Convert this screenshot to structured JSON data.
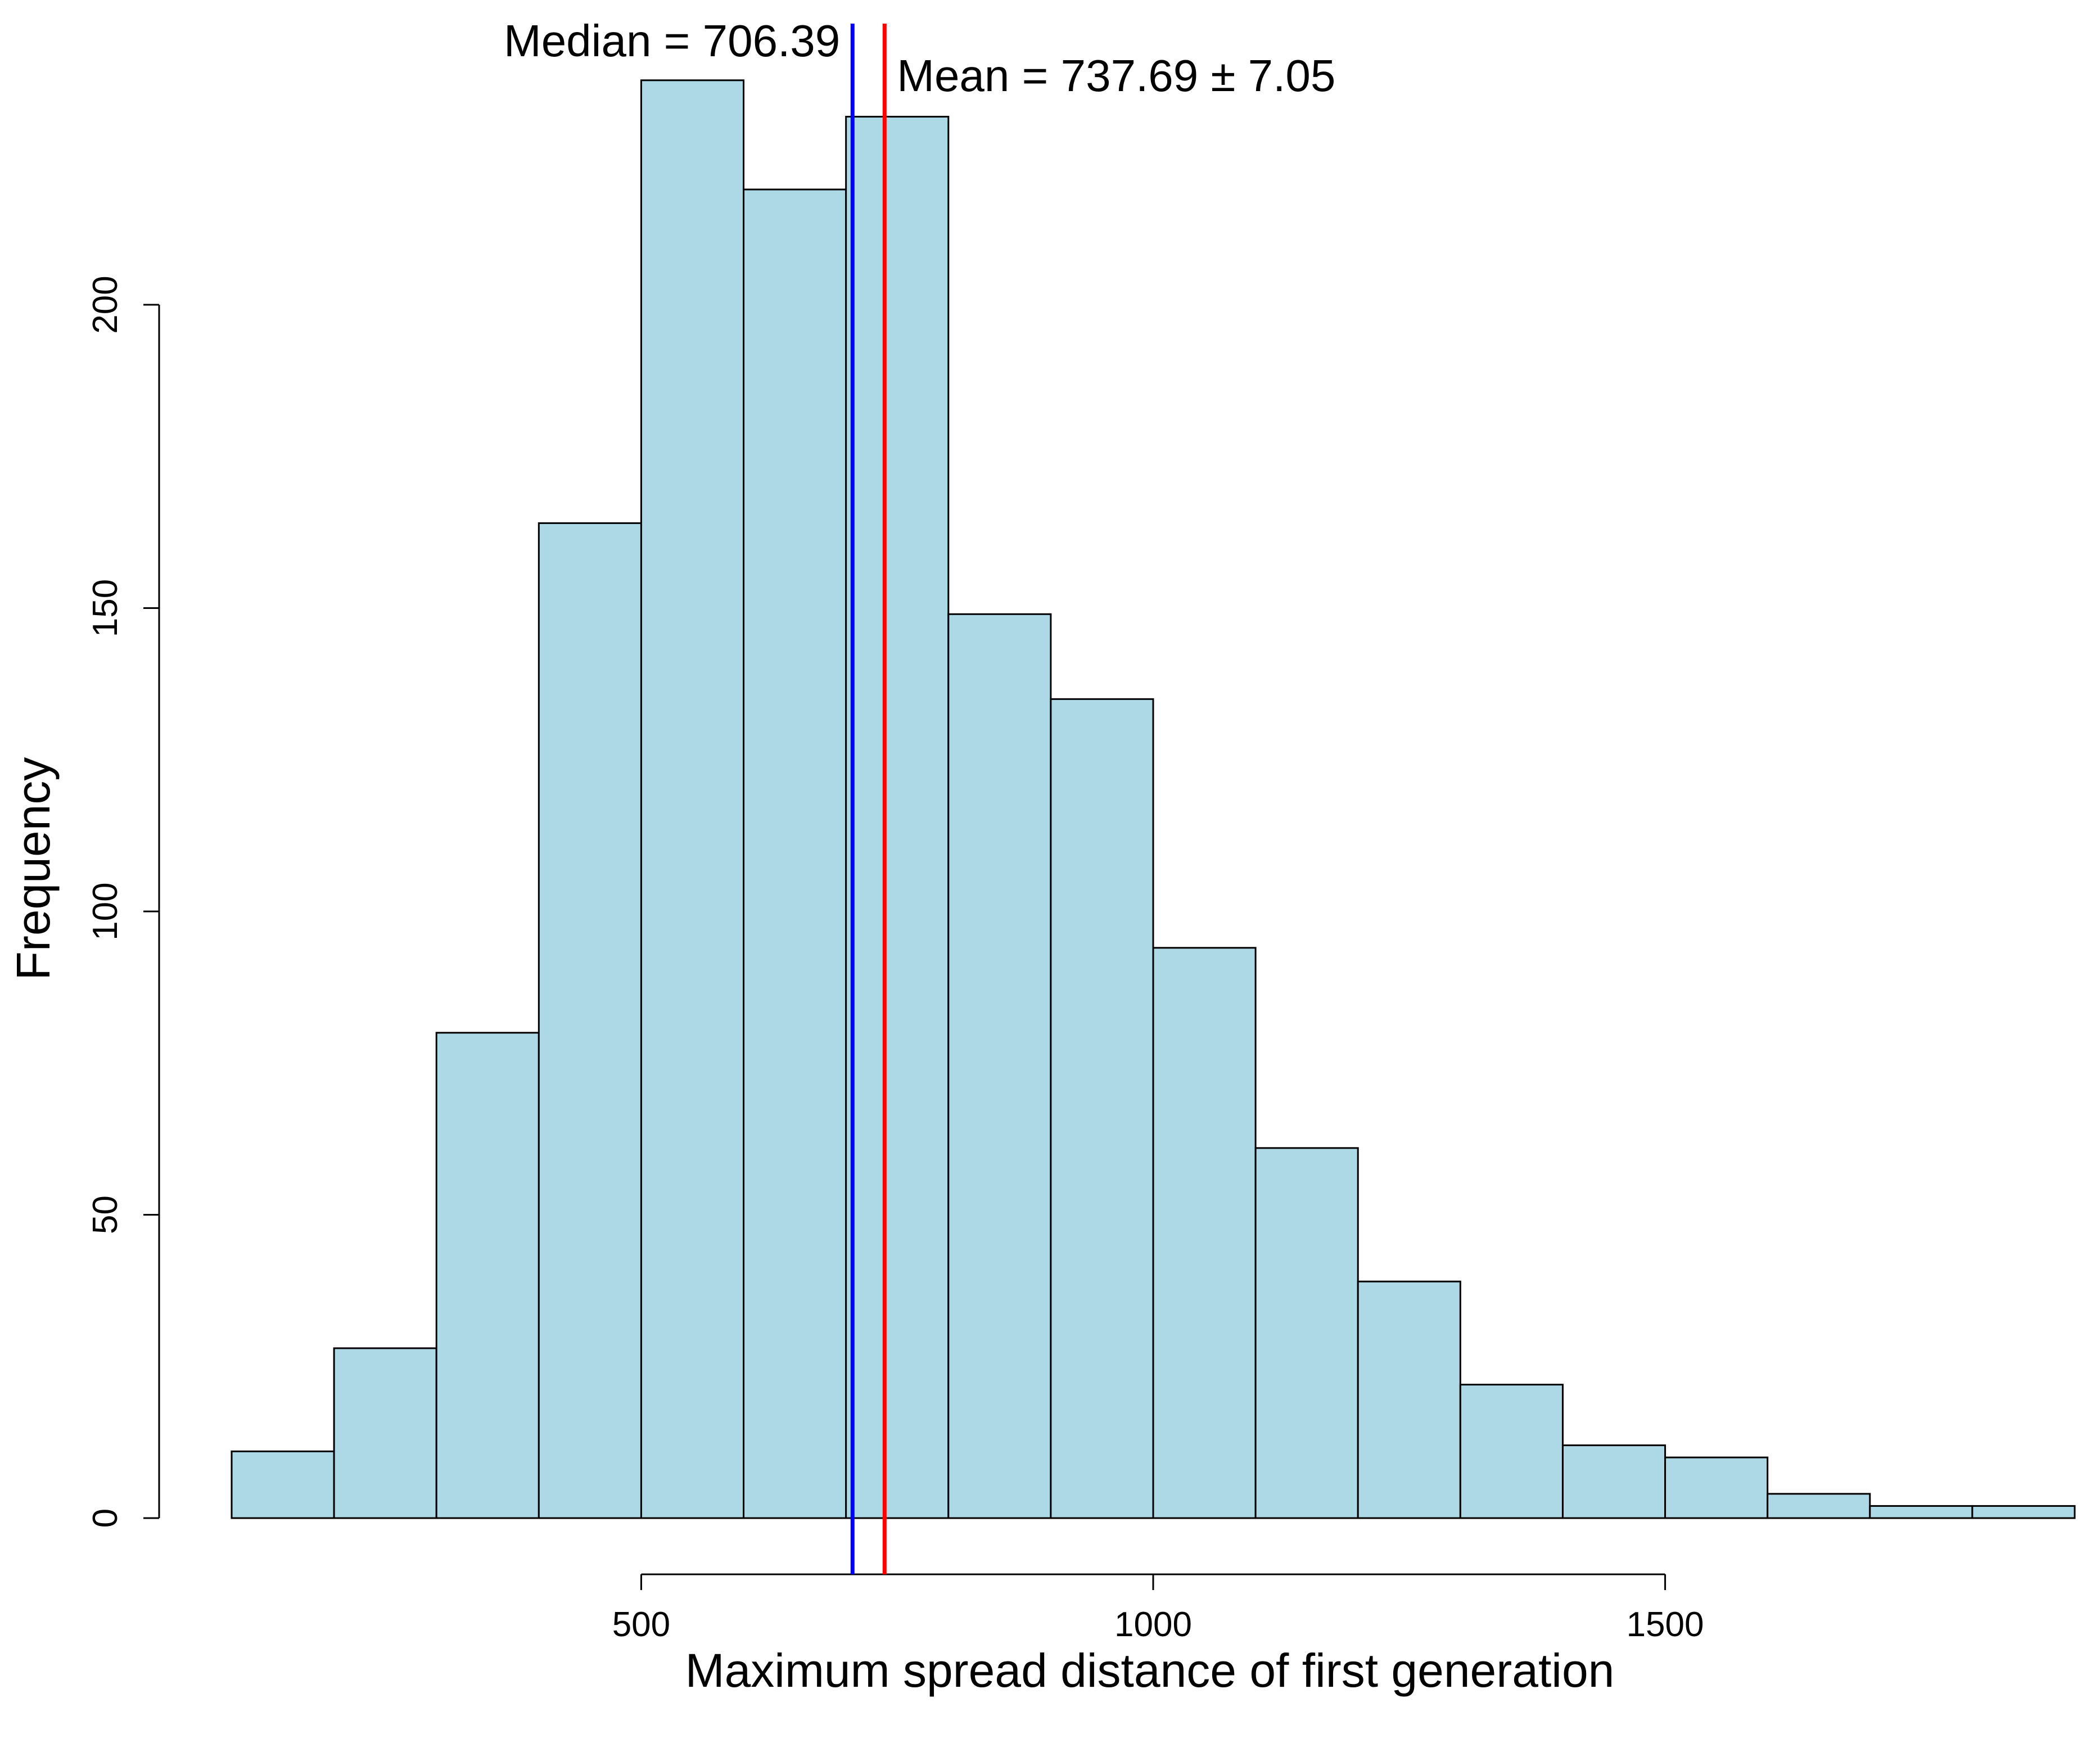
{
  "chart_data": {
    "type": "bar",
    "subtype": "histogram",
    "bin_edges": [
      100,
      200,
      300,
      400,
      500,
      600,
      700,
      800,
      900,
      1000,
      1100,
      1200,
      1300,
      1400,
      1500,
      1600,
      1700,
      1800,
      1900
    ],
    "values": [
      11,
      28,
      80,
      164,
      237,
      219,
      231,
      149,
      135,
      94,
      61,
      39,
      22,
      12,
      10,
      4,
      2,
      2
    ],
    "title": "",
    "xlabel": "Maximum spread distance of first generation",
    "ylabel": "Frequency",
    "xlim": [
      100,
      1900
    ],
    "ylim": [
      0,
      240
    ],
    "x_ticks": [
      500,
      1000,
      1500
    ],
    "y_ticks": [
      0,
      50,
      100,
      150,
      200
    ],
    "x_tick_labels": [
      "500",
      "1000",
      "1500"
    ],
    "y_tick_labels": [
      "0",
      "50",
      "100",
      "150",
      "200"
    ],
    "bar_color": "#add8e6",
    "grid": false,
    "legend": "none",
    "reference_lines": [
      {
        "name": "median",
        "x": 706.39,
        "color": "#0000ff",
        "label": "Median = 706.39"
      },
      {
        "name": "mean",
        "x": 737.69,
        "color": "#ff0000",
        "label": "Mean = 737.69 ± 7.05"
      }
    ]
  }
}
